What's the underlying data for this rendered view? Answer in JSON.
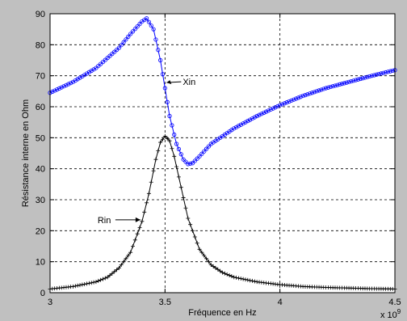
{
  "chart_data": {
    "type": "line",
    "title": "",
    "xlabel": "Fréquence en Hz",
    "ylabel": "Résistance interne en Ohm",
    "x_multiplier": "x 10",
    "x_multiplier_exp": "9",
    "xlim": [
      3,
      4.5
    ],
    "ylim": [
      0,
      90
    ],
    "xticks": [
      "3",
      "3.5",
      "4",
      "4.5"
    ],
    "yticks": [
      "0",
      "10",
      "20",
      "30",
      "40",
      "50",
      "60",
      "70",
      "80",
      "90"
    ],
    "grid": true,
    "series": [
      {
        "name": "Xin",
        "color": "#0000ff",
        "marker": "circle",
        "x": [
          3.0,
          3.1,
          3.2,
          3.3,
          3.35,
          3.4,
          3.42,
          3.45,
          3.48,
          3.5,
          3.52,
          3.55,
          3.58,
          3.6,
          3.62,
          3.65,
          3.7,
          3.8,
          3.9,
          4.0,
          4.1,
          4.2,
          4.3,
          4.4,
          4.5
        ],
        "values": [
          64.5,
          68.0,
          72.5,
          79.0,
          83.5,
          87.5,
          88.5,
          85.0,
          75.0,
          66.0,
          57.0,
          48.0,
          43.0,
          41.5,
          41.8,
          44.0,
          48.0,
          53.0,
          57.0,
          60.5,
          63.5,
          66.0,
          68.0,
          70.0,
          71.8
        ]
      },
      {
        "name": "Rin",
        "color": "#000000",
        "marker": "plus",
        "x": [
          3.0,
          3.1,
          3.2,
          3.25,
          3.3,
          3.35,
          3.4,
          3.43,
          3.46,
          3.48,
          3.5,
          3.52,
          3.54,
          3.57,
          3.6,
          3.65,
          3.7,
          3.75,
          3.8,
          3.9,
          4.0,
          4.1,
          4.2,
          4.3,
          4.4,
          4.5
        ],
        "values": [
          1.2,
          2.0,
          3.5,
          5.0,
          8.0,
          13.0,
          23.0,
          32.0,
          43.0,
          48.5,
          50.5,
          49.0,
          44.0,
          34.0,
          24.0,
          14.0,
          9.0,
          6.5,
          5.0,
          3.5,
          2.6,
          2.0,
          1.7,
          1.5,
          1.3,
          1.2
        ]
      }
    ],
    "annotations": [
      {
        "text": "Xin",
        "series": "Xin",
        "x": 3.5,
        "y": 66.5
      },
      {
        "text": "Rin",
        "series": "Rin",
        "x": 3.4,
        "y": 23.5
      }
    ]
  }
}
